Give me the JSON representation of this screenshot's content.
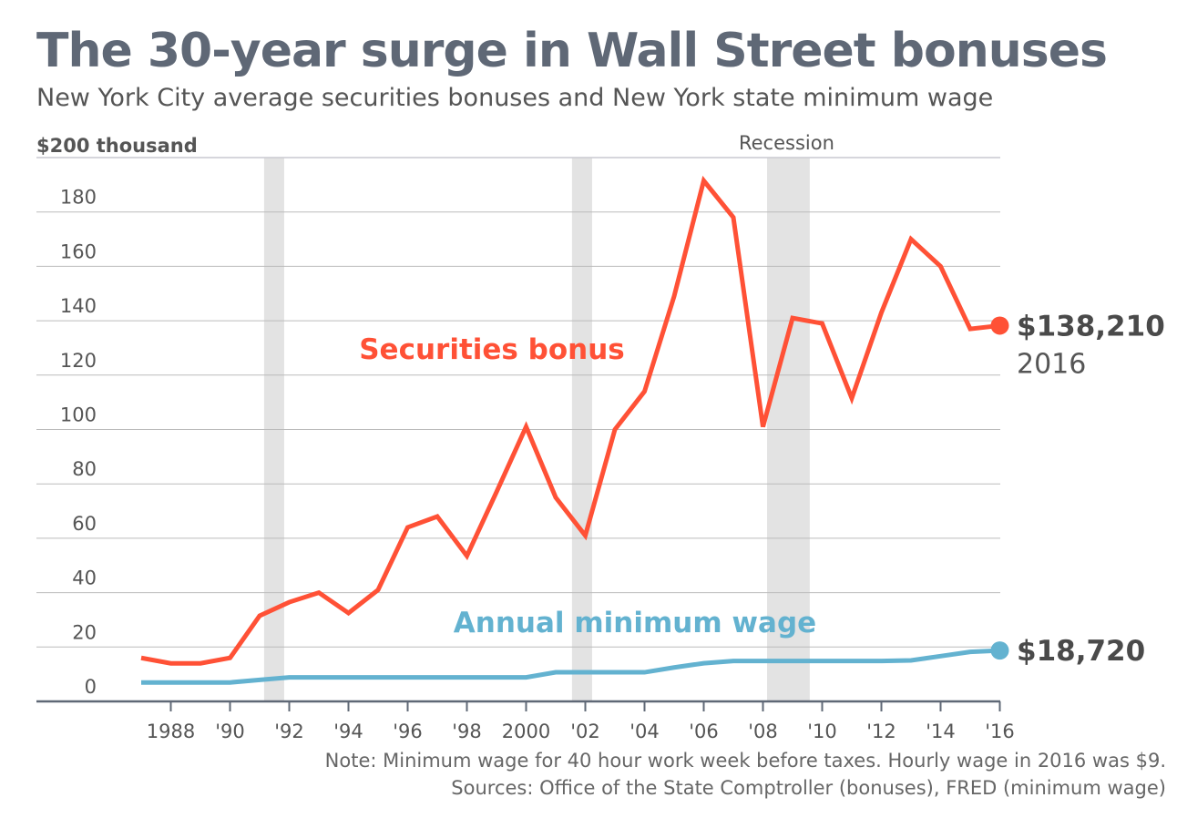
{
  "title": "The 30-year surge in Wall Street bonuses",
  "subtitle": "New York City average securities bonuses and New York state minimum wage",
  "note": "Note: Minimum wage for 40 hour work week before taxes. Hourly wage in 2016 was $9.",
  "sources": "Sources: Office of the State Comptroller (bonuses), FRED (minimum wage)",
  "chart_data": {
    "type": "line",
    "ylabel": "$200 thousand",
    "ylim": [
      0,
      200
    ],
    "yticks": [
      0,
      20,
      40,
      60,
      80,
      100,
      120,
      140,
      160,
      180
    ],
    "xlim": [
      1987,
      2016
    ],
    "xticks": [
      {
        "x": 1988,
        "label": "1988"
      },
      {
        "x": 1990,
        "label": "'90"
      },
      {
        "x": 1992,
        "label": "'92"
      },
      {
        "x": 1994,
        "label": "'94"
      },
      {
        "x": 1996,
        "label": "'96"
      },
      {
        "x": 1998,
        "label": "'98"
      },
      {
        "x": 2000,
        "label": "2000"
      },
      {
        "x": 2002,
        "label": "'02"
      },
      {
        "x": 2004,
        "label": "'04"
      },
      {
        "x": 2006,
        "label": "'06"
      },
      {
        "x": 2008,
        "label": "'08"
      },
      {
        "x": 2010,
        "label": "'10"
      },
      {
        "x": 2012,
        "label": "'12"
      },
      {
        "x": 2014,
        "label": "'14"
      },
      {
        "x": 2016,
        "label": "'16"
      }
    ],
    "grid": true,
    "x": [
      1987,
      1988,
      1989,
      1990,
      1991,
      1992,
      1993,
      1994,
      1995,
      1996,
      1997,
      1998,
      1999,
      2000,
      2001,
      2002,
      2003,
      2004,
      2005,
      2006,
      2007,
      2008,
      2009,
      2010,
      2011,
      2012,
      2013,
      2014,
      2015,
      2016
    ],
    "series": [
      {
        "name": "Securities bonus",
        "color": "#ff5136",
        "values": [
          16,
          14,
          14,
          16,
          31.5,
          36.5,
          40,
          32.5,
          41,
          64,
          68,
          53.5,
          77,
          101,
          75,
          61,
          100,
          114,
          149,
          191.5,
          178,
          101,
          141,
          139,
          111.5,
          143,
          170,
          160,
          137,
          138.21
        ],
        "end_label": "$138,210",
        "end_sublabel": "2016"
      },
      {
        "name": "Annual minimum wage",
        "color": "#63b2d0",
        "values": [
          6.97,
          6.97,
          6.97,
          6.97,
          7.9,
          8.84,
          8.84,
          8.84,
          8.84,
          8.84,
          8.84,
          8.84,
          8.84,
          8.84,
          10.71,
          10.71,
          10.71,
          10.71,
          12.48,
          14.04,
          14.87,
          14.87,
          14.87,
          14.87,
          14.87,
          14.87,
          15.08,
          16.64,
          18.2,
          18.72
        ],
        "end_label": "$18,720"
      }
    ],
    "recession_label": "Recession",
    "recessions": [
      [
        1991.15,
        1991.83
      ],
      [
        2001.55,
        2002.23
      ],
      [
        2008.14,
        2009.58
      ]
    ]
  }
}
